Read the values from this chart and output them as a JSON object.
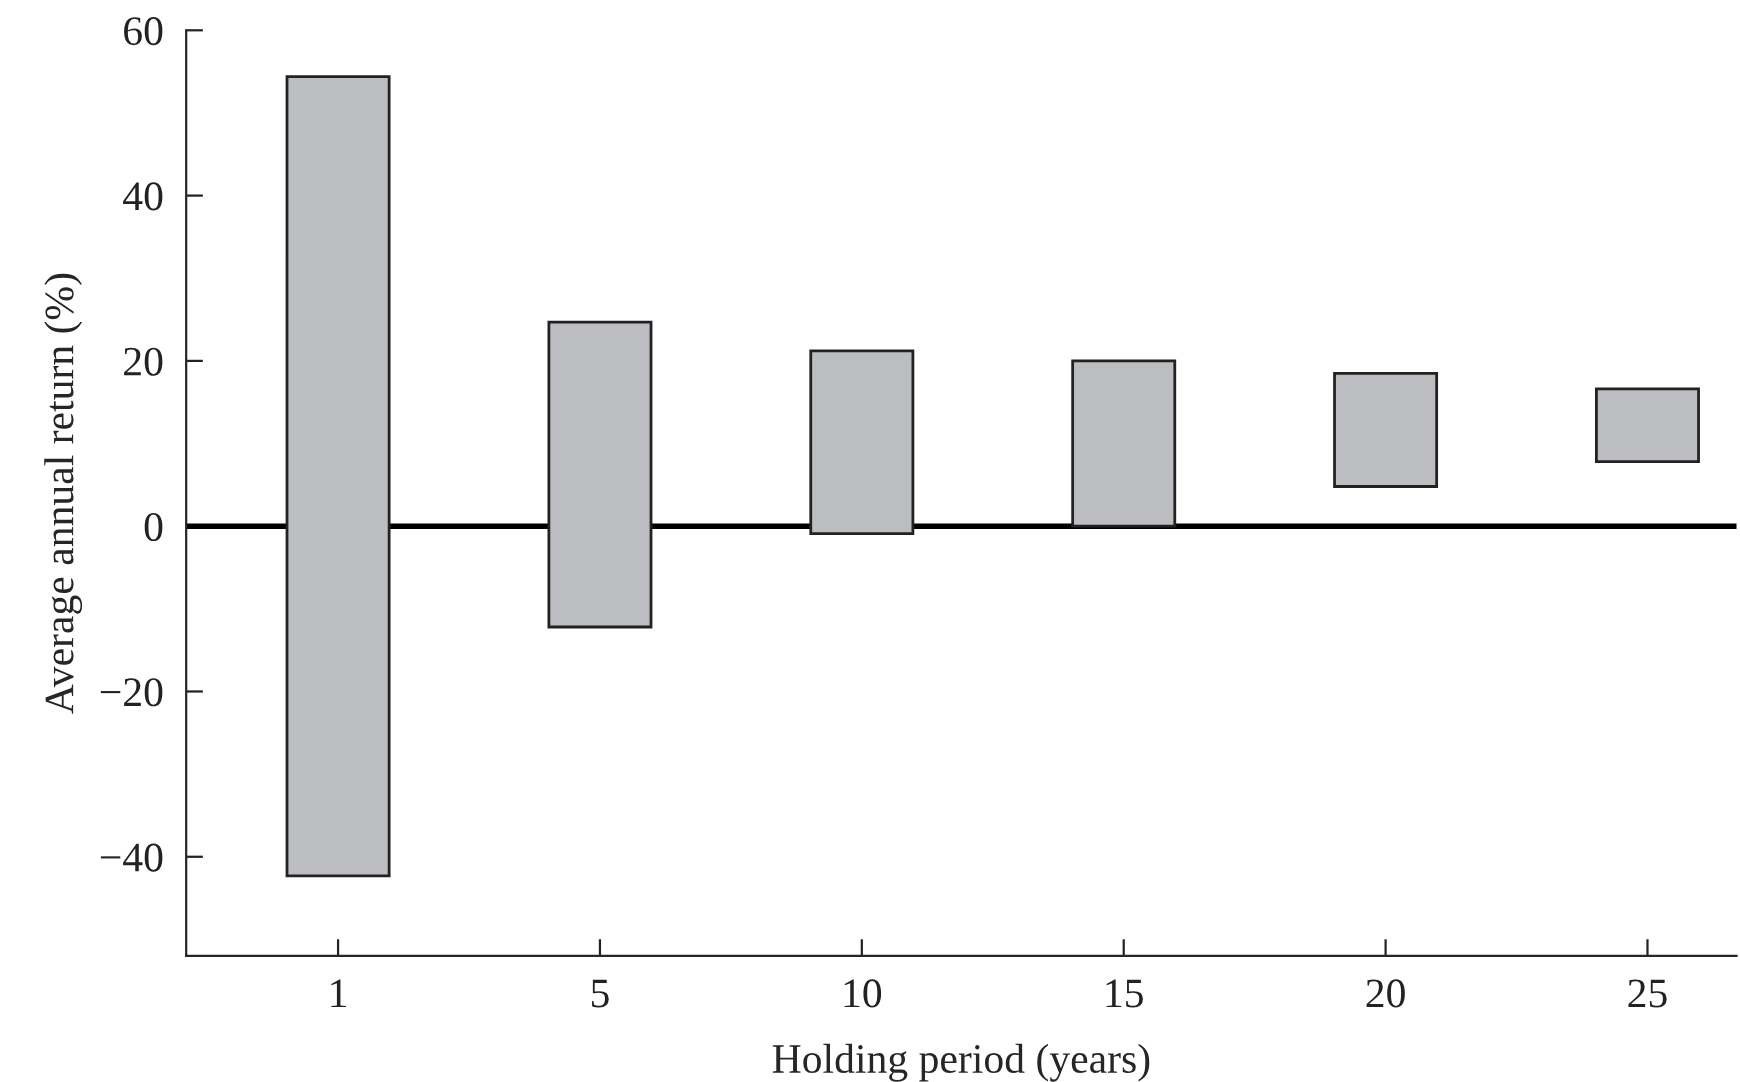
{
  "chart_data": {
    "type": "bar",
    "xlabel": "Holding period (years)",
    "ylabel": "Average annual return (%)",
    "categories": [
      "1",
      "5",
      "10",
      "15",
      "20",
      "25"
    ],
    "base": [
      -42.3,
      -12.2,
      -0.9,
      0,
      4.8,
      7.8
    ],
    "values": [
      96.7,
      36.9,
      22.1,
      20,
      13.7,
      8.8
    ],
    "color": "#bcbdc1",
    "ylim": [
      -52,
      60
    ],
    "yticks": [
      {
        "value": -40,
        "label": "−40"
      },
      {
        "value": -20,
        "label": "−20"
      },
      0,
      20,
      40,
      60
    ],
    "ref_lines": [
      {
        "axis": "y",
        "value": 0,
        "color": "#000000"
      }
    ],
    "grid": false,
    "legend": false
  }
}
